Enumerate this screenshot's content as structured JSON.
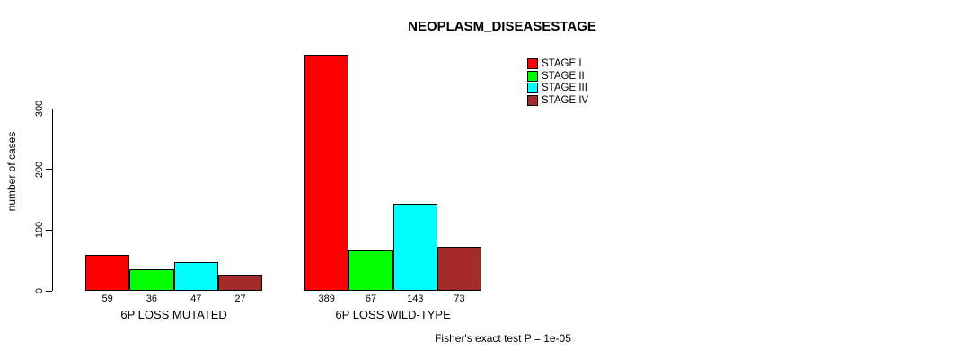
{
  "chart": {
    "title": "NEOPLASM_DISEASESTAGE",
    "ylabel": "number of cases",
    "footer": "Fisher's exact test P = 1e-05"
  },
  "chart_data": {
    "type": "bar",
    "title": "NEOPLASM_DISEASESTAGE",
    "xlabel": "",
    "ylabel": "number of cases",
    "categories": [
      "6P LOSS MUTATED",
      "6P LOSS WILD-TYPE"
    ],
    "series": [
      {
        "name": "STAGE I",
        "color": "#ff0000",
        "values": [
          59,
          389
        ]
      },
      {
        "name": "STAGE II",
        "color": "#00ff00",
        "values": [
          36,
          67
        ]
      },
      {
        "name": "STAGE III",
        "color": "#00ffff",
        "values": [
          47,
          143
        ]
      },
      {
        "name": "STAGE IV",
        "color": "#a52a2a",
        "values": [
          27,
          73
        ]
      }
    ],
    "bar_value_labels": [
      [
        "59",
        "36",
        "47",
        "27"
      ],
      [
        "389",
        "67",
        "143",
        "73"
      ]
    ],
    "yticks": [
      0,
      100,
      200,
      300
    ],
    "ylim": [
      0,
      389
    ],
    "grid": false,
    "legend_position": "top-right",
    "legend_entries": [
      "STAGE I",
      "STAGE II",
      "STAGE III",
      "STAGE IV"
    ],
    "annotation": "Fisher's exact test P = 1e-05"
  }
}
